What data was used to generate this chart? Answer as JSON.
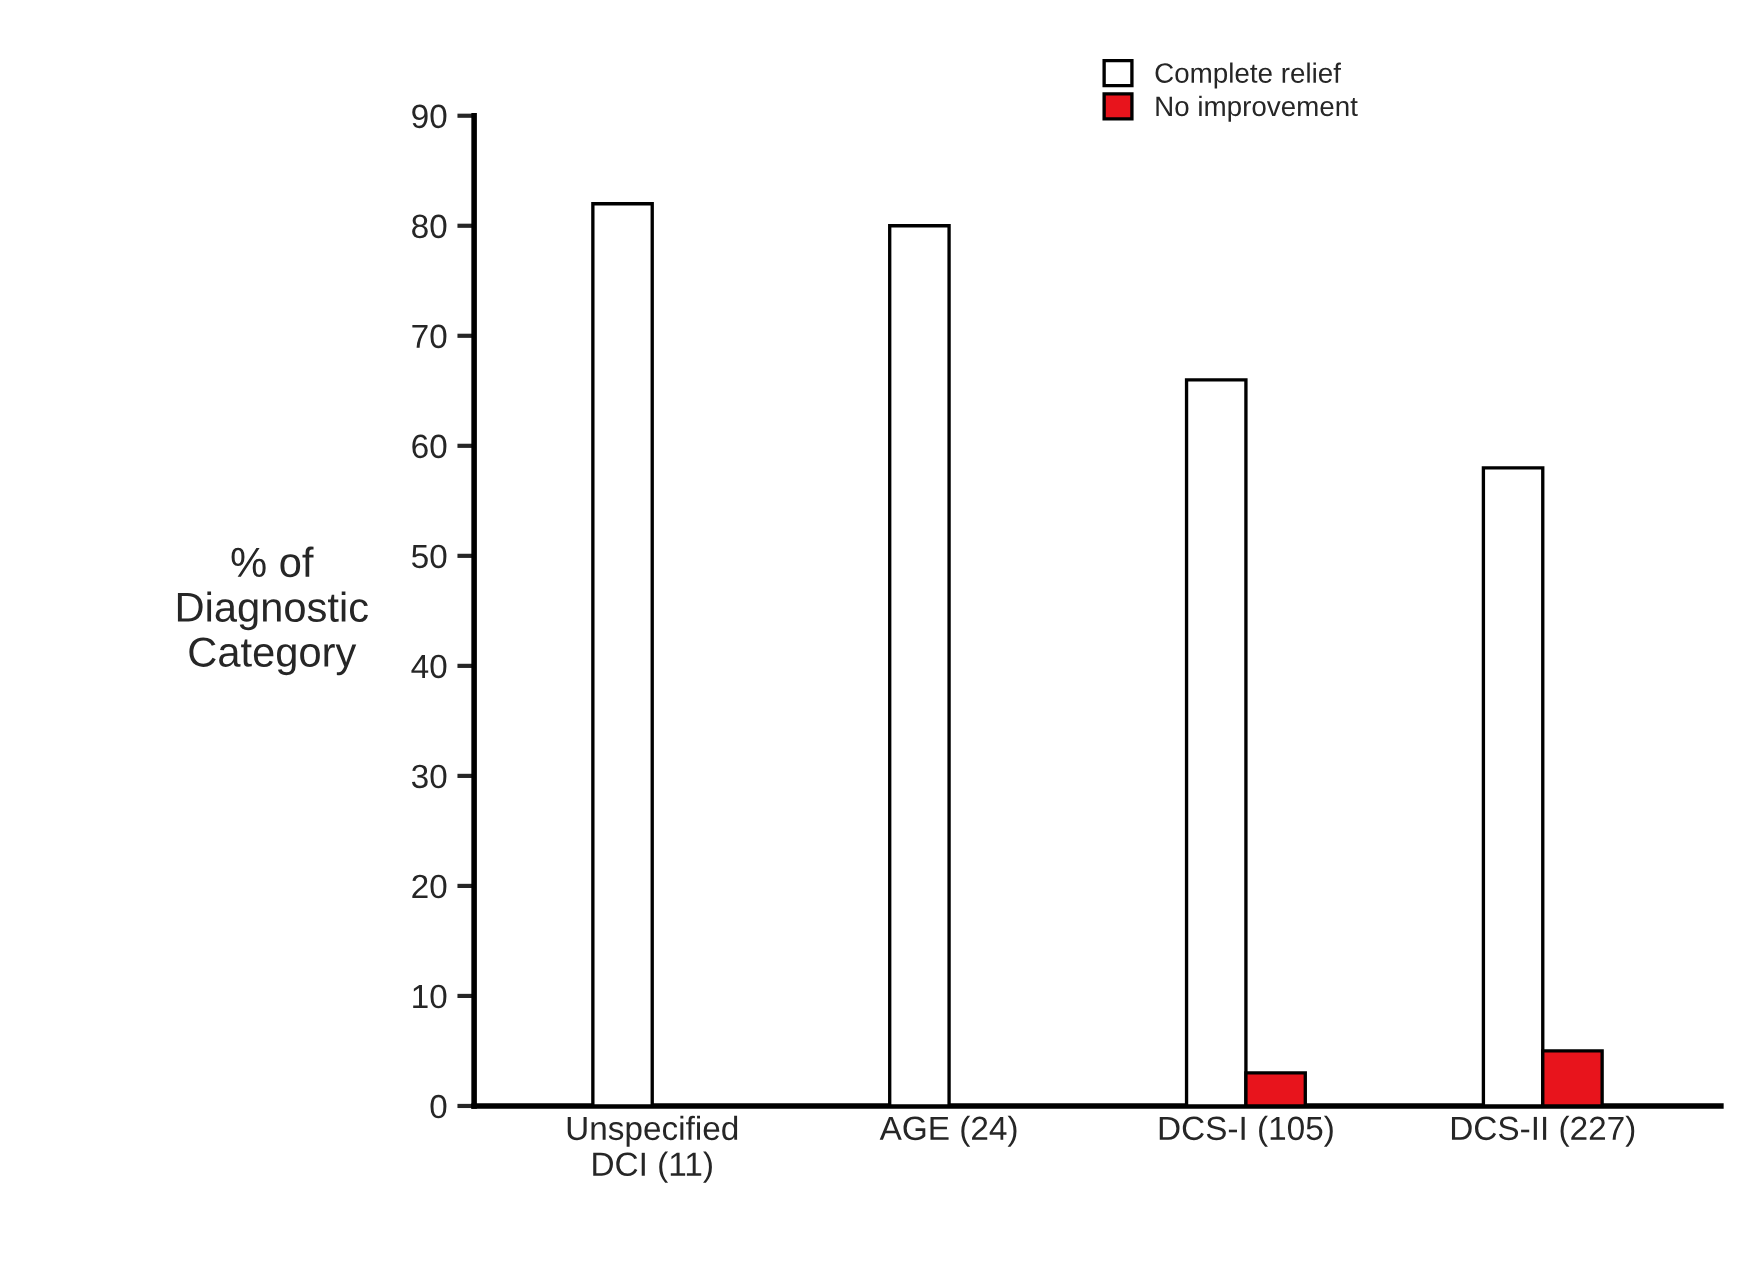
{
  "chart_data": {
    "type": "bar",
    "ylabel": "% of\nDiagnostic\nCategory",
    "categories": [
      "Unspecified\nDCI (11)",
      "AGE (24)",
      "DCS-I (105)",
      "DCS-II (227)"
    ],
    "series": [
      {
        "name": "Complete relief",
        "color": "#ffffff",
        "values": [
          82,
          80,
          66,
          58
        ]
      },
      {
        "name": "No improvement",
        "color": "#e8141c",
        "values": [
          null,
          null,
          3,
          5
        ]
      }
    ],
    "ylim": [
      0,
      90
    ],
    "yticks": [
      0,
      10,
      20,
      30,
      40,
      50,
      60,
      70,
      80,
      90
    ],
    "grid": false,
    "legend": "top right"
  }
}
